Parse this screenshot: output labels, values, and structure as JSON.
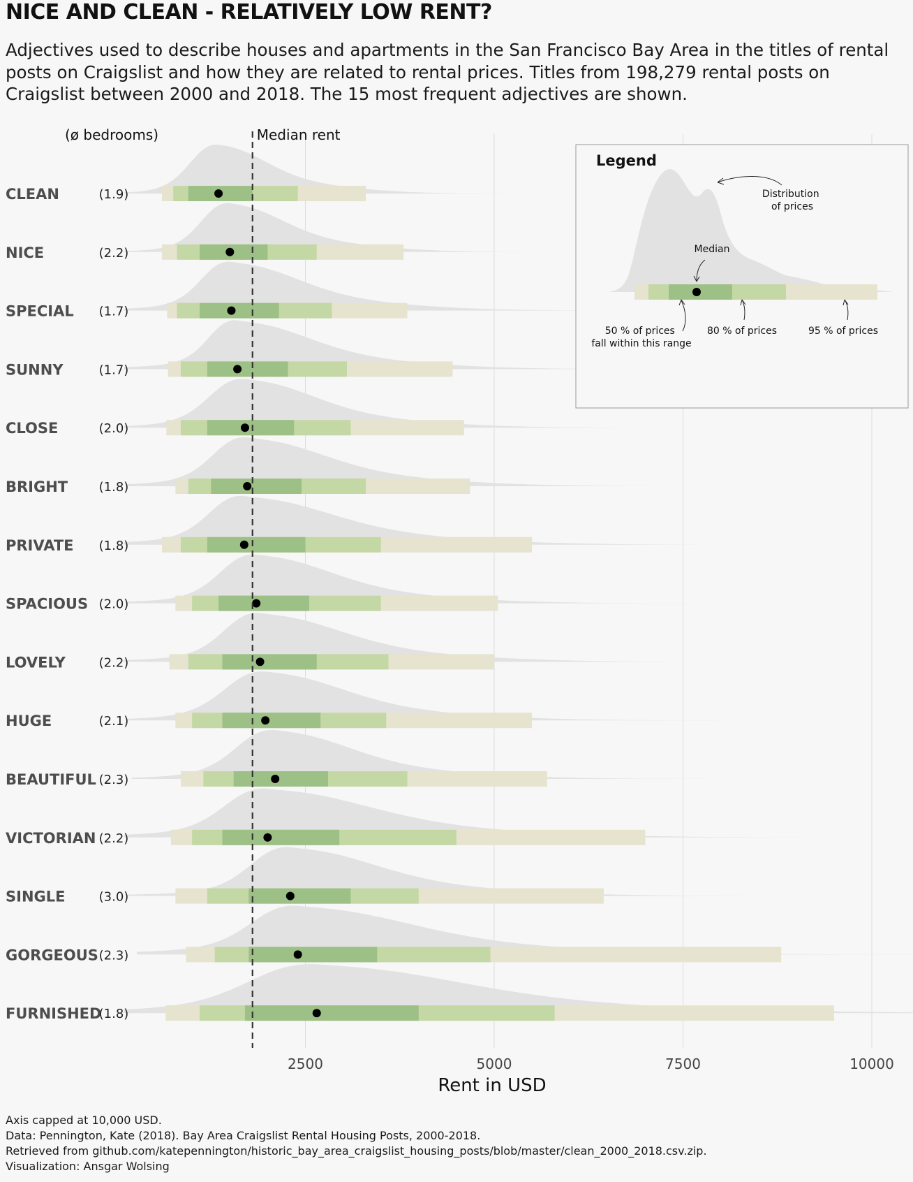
{
  "title": "NICE AND CLEAN - RELATIVELY LOW RENT?",
  "subtitle": "Adjectives used to describe houses and apartments in the San Francisco Bay Area in the titles of rental posts on Craigslist and how they are related to rental prices. Titles from 198,279 rental posts on Craigslist between 2000 and 2018. The 15 most frequent adjectives are shown.",
  "bedrooms_header": "(ø bedrooms)",
  "median_label": "Median rent",
  "caption": [
    "Axis capped at 10,000 USD.",
    "Data: Pennington, Kate (2018). Bay Area Craigslist Rental Housing Posts, 2000-2018.",
    "Retrieved from github.com/katepennington/historic_bay_area_craigslist_housing_posts/blob/master/clean_2000_2018.csv.zip.",
    "Visualization: Ansgar Wolsing"
  ],
  "legend": {
    "title": "Legend",
    "distribution": [
      "Distribution",
      "of prices"
    ],
    "median": "Median",
    "p50": [
      "50 % of prices",
      "fall within this range"
    ],
    "p80": "80 % of prices",
    "p95": "95 % of prices"
  },
  "colors": {
    "background": "#f7f7f7",
    "density": "#e2e2e2",
    "interval95": "#e6e3cf",
    "interval80": "#c4d8a6",
    "interval50": "#9dc086",
    "point": "#000000",
    "label": "#4d4d4d"
  },
  "chart_data": {
    "type": "interval",
    "title": "NICE AND CLEAN - RELATIVELY LOW RENT?",
    "xlabel": "Rent in USD",
    "ylabel": "",
    "xlim": [
      0,
      10000
    ],
    "xticks": [
      2500,
      5000,
      7500,
      10000
    ],
    "xtick_labels": [
      "2500",
      "5000",
      "7500",
      "10000"
    ],
    "overall_median": 1800,
    "grid": true,
    "legend_position": "top-right",
    "categories": [
      {
        "label": "CLEAN",
        "bedrooms": "(1.9)",
        "median": 1350,
        "i50": [
          950,
          1800
        ],
        "i80": [
          750,
          2400
        ],
        "i95": [
          600,
          3300
        ]
      },
      {
        "label": "NICE",
        "bedrooms": "(2.2)",
        "median": 1500,
        "i50": [
          1100,
          2000
        ],
        "i80": [
          800,
          2650
        ],
        "i95": [
          600,
          3800
        ]
      },
      {
        "label": "SPECIAL",
        "bedrooms": "(1.7)",
        "median": 1520,
        "i50": [
          1100,
          2150
        ],
        "i80": [
          800,
          2850
        ],
        "i95": [
          670,
          3850
        ]
      },
      {
        "label": "SUNNY",
        "bedrooms": "(1.7)",
        "median": 1600,
        "i50": [
          1200,
          2270
        ],
        "i80": [
          850,
          3050
        ],
        "i95": [
          680,
          4450
        ]
      },
      {
        "label": "CLOSE",
        "bedrooms": "(2.0)",
        "median": 1700,
        "i50": [
          1200,
          2350
        ],
        "i80": [
          850,
          3100
        ],
        "i95": [
          660,
          4600
        ]
      },
      {
        "label": "BRIGHT",
        "bedrooms": "(1.8)",
        "median": 1730,
        "i50": [
          1250,
          2450
        ],
        "i80": [
          950,
          3300
        ],
        "i95": [
          780,
          4680
        ]
      },
      {
        "label": "PRIVATE",
        "bedrooms": "(1.8)",
        "median": 1690,
        "i50": [
          1200,
          2500
        ],
        "i80": [
          850,
          3500
        ],
        "i95": [
          600,
          5500
        ]
      },
      {
        "label": "SPACIOUS",
        "bedrooms": "(2.0)",
        "median": 1850,
        "i50": [
          1350,
          2550
        ],
        "i80": [
          1000,
          3500
        ],
        "i95": [
          780,
          5050
        ]
      },
      {
        "label": "LOVELY",
        "bedrooms": "(2.2)",
        "median": 1900,
        "i50": [
          1400,
          2650
        ],
        "i80": [
          950,
          3600
        ],
        "i95": [
          700,
          5000
        ]
      },
      {
        "label": "HUGE",
        "bedrooms": "(2.1)",
        "median": 1970,
        "i50": [
          1400,
          2700
        ],
        "i80": [
          1000,
          3570
        ],
        "i95": [
          780,
          5500
        ]
      },
      {
        "label": "BEAUTIFUL",
        "bedrooms": "(2.3)",
        "median": 2100,
        "i50": [
          1550,
          2800
        ],
        "i80": [
          1150,
          3850
        ],
        "i95": [
          850,
          5700
        ]
      },
      {
        "label": "VICTORIAN",
        "bedrooms": "(2.2)",
        "median": 2000,
        "i50": [
          1400,
          2950
        ],
        "i80": [
          1000,
          4500
        ],
        "i95": [
          720,
          7000
        ]
      },
      {
        "label": "SINGLE",
        "bedrooms": "(3.0)",
        "median": 2300,
        "i50": [
          1750,
          3100
        ],
        "i80": [
          1200,
          4000
        ],
        "i95": [
          780,
          6450
        ]
      },
      {
        "label": "GORGEOUS",
        "bedrooms": "(2.3)",
        "median": 2400,
        "i50": [
          1750,
          3450
        ],
        "i80": [
          1300,
          4950
        ],
        "i95": [
          920,
          8800
        ]
      },
      {
        "label": "FURNISHED",
        "bedrooms": "(1.8)",
        "median": 2650,
        "i50": [
          1700,
          4000
        ],
        "i80": [
          1100,
          5800
        ],
        "i95": [
          650,
          9500
        ]
      }
    ]
  }
}
